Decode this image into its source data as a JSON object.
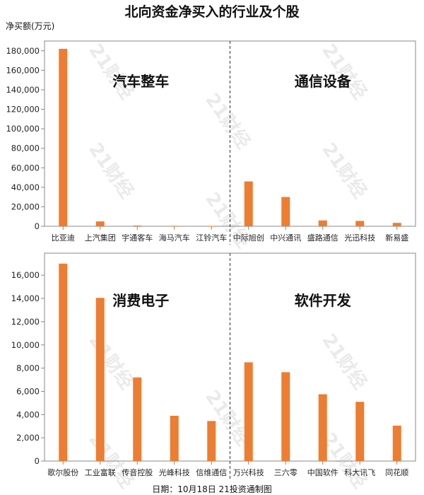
{
  "title": "北向资金净买入的行业及个股",
  "ylabel": "净买额(万元)",
  "footer": "日期：10月18日 21投资通制图",
  "watermark": "21财经",
  "colors": {
    "bar": "#ED7D31",
    "axis": "#888888"
  },
  "chart_data": [
    {
      "type": "bar",
      "ylim": [
        0,
        190000
      ],
      "yticks": [
        0,
        20000,
        40000,
        60000,
        80000,
        100000,
        120000,
        140000,
        160000,
        180000
      ],
      "groups": [
        "汽车整车",
        "通信设备"
      ],
      "categories": [
        "比亚迪",
        "上汽集团",
        "宇通客车",
        "海马汽车",
        "江铃汽车",
        "中际旭创",
        "中兴通讯",
        "盛路通信",
        "光迅科技",
        "新易盛"
      ],
      "values": [
        182000,
        5000,
        800,
        500,
        300,
        46000,
        30000,
        6000,
        5500,
        3500
      ]
    },
    {
      "type": "bar",
      "ylim": [
        0,
        17900
      ],
      "yticks": [
        0,
        2000,
        4000,
        6000,
        8000,
        10000,
        12000,
        14000,
        16000
      ],
      "groups": [
        "消费电子",
        "软件开发"
      ],
      "categories": [
        "歌尔股份",
        "工业富联",
        "传音控股",
        "光峰科技",
        "信维通信",
        "万兴科技",
        "三六零",
        "中国软件",
        "科大讯飞",
        "同花顺"
      ],
      "values": [
        17000,
        14050,
        7200,
        3900,
        3450,
        8500,
        7650,
        5750,
        5100,
        3050
      ]
    }
  ]
}
